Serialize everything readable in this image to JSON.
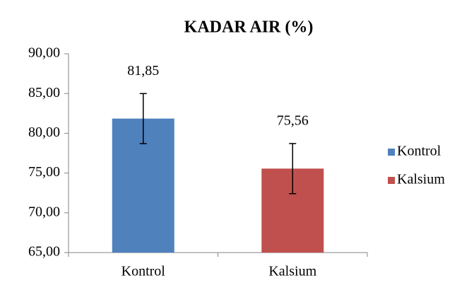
{
  "chart_data": {
    "type": "bar",
    "title": "KADAR AIR (%)",
    "categories": [
      "Kontrol",
      "Kalsium"
    ],
    "series": [
      {
        "name": "Kontrol",
        "color": "#4f81bd",
        "values": [
          81.85,
          null
        ],
        "value_labels": [
          "81,85",
          null
        ],
        "errors": [
          3.15,
          null
        ]
      },
      {
        "name": "Kalsium",
        "color": "#c0504d",
        "values": [
          null,
          75.56
        ],
        "value_labels": [
          null,
          "75,56"
        ],
        "errors": [
          null,
          3.15
        ]
      }
    ],
    "ylim": [
      65,
      90
    ],
    "yticks": [
      {
        "value": 65,
        "label": "65,00"
      },
      {
        "value": 70,
        "label": "70,00"
      },
      {
        "value": 75,
        "label": "75,00"
      },
      {
        "value": 80,
        "label": "80,00"
      },
      {
        "value": 85,
        "label": "85,00"
      },
      {
        "value": 90,
        "label": "90,00"
      }
    ],
    "legend": "right"
  }
}
